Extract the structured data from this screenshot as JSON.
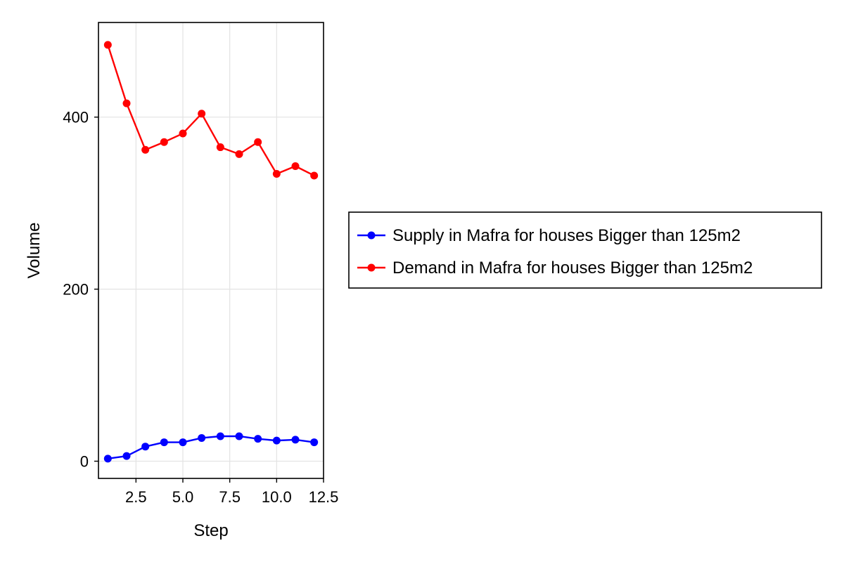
{
  "chart_data": {
    "type": "line",
    "title": "",
    "xlabel": "Step",
    "ylabel": "Volume",
    "xlim": [
      0.5,
      12.5
    ],
    "ylim": [
      -20,
      510
    ],
    "xticks": [
      2.5,
      5.0,
      7.5,
      10.0,
      12.5
    ],
    "xtick_labels": [
      "2.5",
      "5.0",
      "7.5",
      "10.0",
      "12.5"
    ],
    "yticks": [
      0,
      200,
      400
    ],
    "ytick_labels": [
      "0",
      "200",
      "400"
    ],
    "grid": true,
    "legend_position": "right, outside plot",
    "x": [
      1,
      2,
      3,
      4,
      5,
      6,
      7,
      8,
      9,
      10,
      11,
      12
    ],
    "series": [
      {
        "name": "Supply in Mafra for houses Bigger than 125m2",
        "color": "#0000ff",
        "marker": "circle",
        "values": [
          3,
          6,
          17,
          22,
          22,
          27,
          29,
          29,
          26,
          24,
          25,
          22
        ]
      },
      {
        "name": "Demand in Mafra for houses Bigger than 125m2",
        "color": "#ff0000",
        "marker": "circle",
        "values": [
          484,
          416,
          362,
          371,
          381,
          404,
          365,
          357,
          371,
          334,
          343,
          332
        ]
      }
    ]
  }
}
